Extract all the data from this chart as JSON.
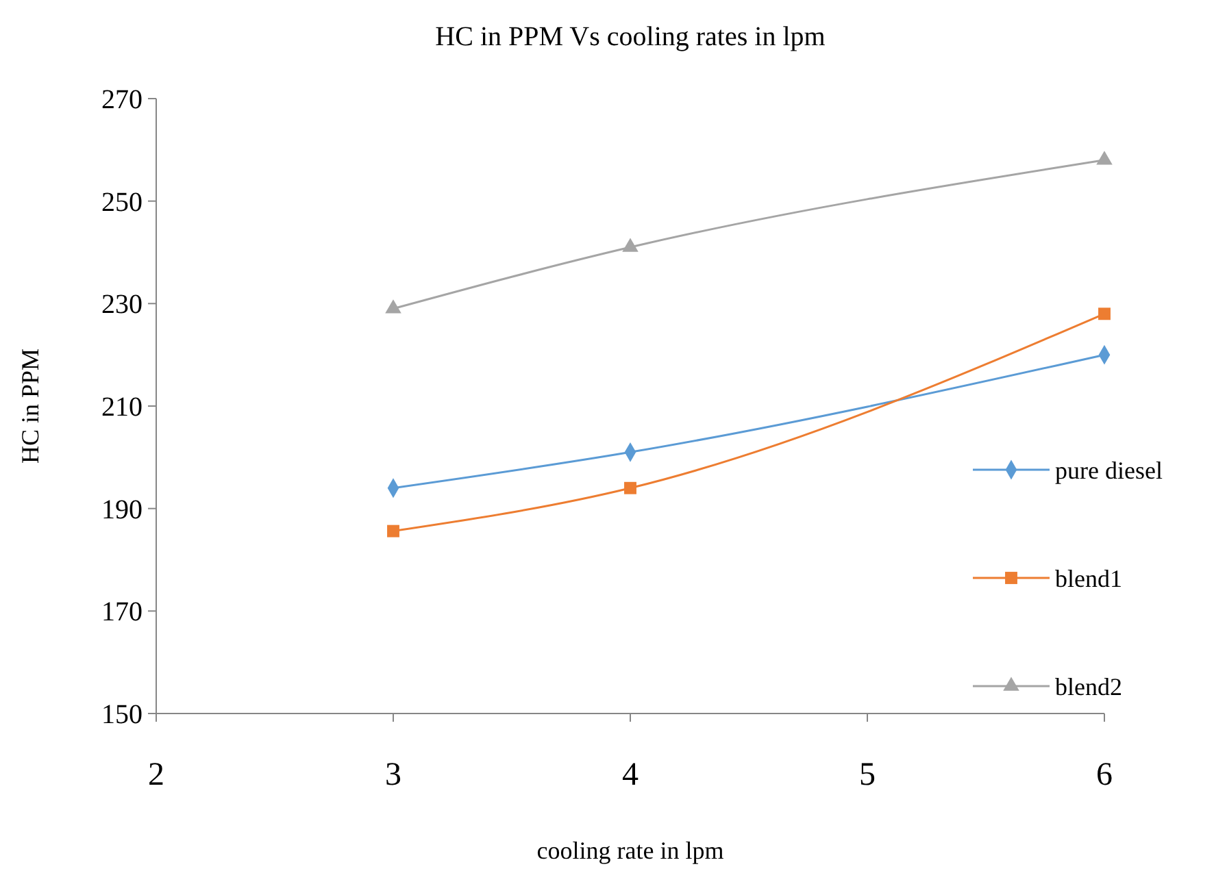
{
  "chart_data": {
    "type": "line",
    "title": "HC in PPM Vs cooling rates in lpm",
    "xlabel": "cooling rate in lpm",
    "ylabel": "HC in PPM",
    "x": [
      3,
      4,
      6
    ],
    "xlim": [
      2,
      6
    ],
    "xticks": [
      2,
      3,
      4,
      5,
      6
    ],
    "ylim": [
      150,
      270
    ],
    "yticks": [
      150,
      170,
      190,
      210,
      230,
      250,
      270
    ],
    "grid": false,
    "legend": "right",
    "series": [
      {
        "name": "pure diesel",
        "color": "#5b9bd5",
        "marker": "diamond",
        "values": [
          194,
          201,
          220
        ]
      },
      {
        "name": "blend1",
        "color": "#ed7d31",
        "marker": "square",
        "values": [
          185.6,
          194,
          228
        ]
      },
      {
        "name": "blend2",
        "color": "#a5a5a5",
        "marker": "triangle",
        "values": [
          229,
          241,
          258
        ]
      }
    ]
  }
}
